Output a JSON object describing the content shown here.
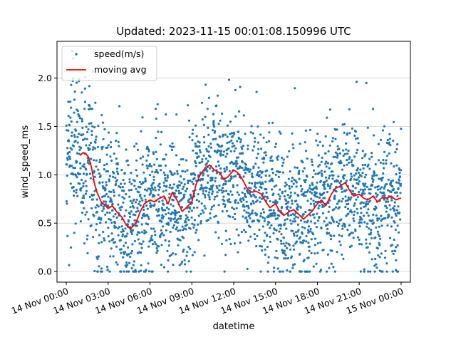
{
  "chart_data": {
    "type": "scatter",
    "title": "Updated: 2023-11-15 00:01:08.150996 UTC",
    "xlabel": "datetime",
    "ylabel": "wind_speed_ms",
    "x_range": [
      "2023-11-14 00:00",
      "2023-11-15 00:00"
    ],
    "xlim": [
      "2023-11-13 23:20",
      "2023-11-15 00:40"
    ],
    "ylim": [
      -0.11,
      2.38
    ],
    "x_tick_labels": [
      "14 Nov 00:00",
      "14 Nov 03:00",
      "14 Nov 06:00",
      "14 Nov 09:00",
      "14 Nov 12:00",
      "14 Nov 15:00",
      "14 Nov 18:00",
      "14 Nov 21:00",
      "15 Nov 00:00"
    ],
    "y_tick_labels": [
      "0.0",
      "0.5",
      "1.0",
      "1.5",
      "2.0"
    ],
    "y_ticks": [
      0.0,
      0.5,
      1.0,
      1.5,
      2.0
    ],
    "grid": "horizontal",
    "legend_position": "top-left",
    "colors": {
      "scatter": "#1f77b4",
      "moving_avg": "#ff0000",
      "grid": "#d9d9d9"
    },
    "series": [
      {
        "name": "speed(m/s)",
        "kind": "scatter",
        "sampling_interval_hours": 0.01,
        "point_count": 2400,
        "note": "dense scatter; points follow the moving average with spread ~0.3–0.45 m/s, values clipped at 0"
      },
      {
        "name": "moving avg",
        "kind": "line",
        "hours": [
          1.0,
          1.2,
          1.4,
          1.6,
          1.8,
          2.0,
          2.2,
          2.5,
          2.8,
          3.0,
          3.3,
          3.6,
          4.0,
          4.3,
          4.6,
          5.0,
          5.3,
          5.6,
          6.0,
          6.3,
          6.6,
          7.0,
          7.3,
          7.6,
          8.0,
          8.3,
          8.6,
          9.0,
          9.3,
          9.6,
          10.0,
          10.3,
          10.6,
          11.0,
          11.3,
          11.6,
          12.0,
          12.3,
          12.6,
          13.0,
          13.3,
          13.6,
          14.0,
          14.3,
          14.6,
          15.0,
          15.3,
          15.6,
          16.0,
          16.3,
          16.6,
          17.0,
          17.3,
          17.6,
          18.0,
          18.3,
          18.6,
          19.0,
          19.3,
          19.6,
          20.0,
          20.3,
          20.6,
          21.0,
          21.3,
          21.6,
          22.0,
          22.3,
          22.6,
          23.0,
          23.3,
          23.6,
          24.0
        ],
        "values": [
          1.2,
          1.23,
          1.22,
          1.18,
          1.08,
          0.92,
          0.82,
          0.72,
          0.68,
          0.65,
          0.68,
          0.62,
          0.56,
          0.48,
          0.44,
          0.5,
          0.62,
          0.7,
          0.74,
          0.72,
          0.75,
          0.78,
          0.7,
          0.82,
          0.72,
          0.62,
          0.66,
          0.72,
          0.9,
          1.0,
          1.08,
          1.1,
          1.05,
          1.02,
          0.95,
          0.98,
          1.05,
          1.02,
          0.96,
          0.85,
          0.82,
          0.83,
          0.8,
          0.72,
          0.66,
          0.7,
          0.62,
          0.58,
          0.62,
          0.64,
          0.6,
          0.54,
          0.58,
          0.62,
          0.7,
          0.74,
          0.68,
          0.8,
          0.86,
          0.88,
          0.92,
          0.84,
          0.78,
          0.8,
          0.76,
          0.74,
          0.78,
          0.72,
          0.76,
          0.76,
          0.78,
          0.74,
          0.76
        ]
      }
    ]
  }
}
